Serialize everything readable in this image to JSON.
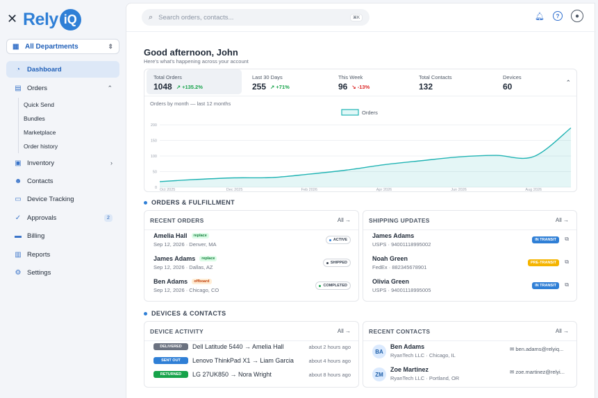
{
  "app": {
    "logo_text": "Rely",
    "logo_badge": "iQ"
  },
  "sidebar": {
    "department": "All Departments",
    "items": [
      {
        "label": "Dashboard",
        "icon": "gauge-icon"
      },
      {
        "label": "Orders",
        "icon": "clipboard-icon"
      },
      {
        "label": "Inventory",
        "icon": "box-icon"
      },
      {
        "label": "Contacts",
        "icon": "users-icon"
      },
      {
        "label": "Device Tracking",
        "icon": "device-icon"
      },
      {
        "label": "Approvals",
        "icon": "check-badge-icon",
        "badge": "2"
      },
      {
        "label": "Billing",
        "icon": "card-icon"
      },
      {
        "label": "Reports",
        "icon": "report-icon"
      },
      {
        "label": "Settings",
        "icon": "settings-icon"
      }
    ],
    "order_subitems": [
      "Quick Send",
      "Bundles",
      "Marketplace",
      "Order history"
    ]
  },
  "search": {
    "placeholder": "Search orders, contacts...",
    "shortcut": "⌘K"
  },
  "greeting": {
    "title": "Good afternoon, John",
    "subtitle": "Here's what's happening across your account"
  },
  "stats": [
    {
      "label": "Total Orders",
      "value": "1048",
      "delta": "+135.2%",
      "trend": "up"
    },
    {
      "label": "Last 30 Days",
      "value": "255",
      "delta": "+71%",
      "trend": "up"
    },
    {
      "label": "This Week",
      "value": "96",
      "delta": "-13%",
      "trend": "down"
    },
    {
      "label": "Total Contacts",
      "value": "132"
    },
    {
      "label": "Devices",
      "value": "60"
    }
  ],
  "chart_data": {
    "type": "area",
    "title": "Orders by month — last 12 months",
    "legend": "Orders",
    "x": [
      "Oct 2025",
      "Nov 2025",
      "Dec 2025",
      "Jan 2026",
      "Feb 2026",
      "Mar 2026",
      "Apr 2026",
      "May 2026",
      "Jun 2026",
      "Jul 2026",
      "Aug 2026",
      "Sep 2026"
    ],
    "x_tick_labels": [
      "Oct 2025",
      "Dec 2025",
      "Feb 2026",
      "Apr 2026",
      "Jun 2026",
      "Aug 2026"
    ],
    "values": [
      18,
      25,
      30,
      31,
      42,
      55,
      72,
      85,
      97,
      102,
      98,
      190
    ],
    "ylim": [
      0,
      200
    ],
    "yticks": [
      0,
      50,
      100,
      150,
      200
    ],
    "color": "#1fb3b3"
  },
  "sections": {
    "orders": "ORDERS & FULFILLMENT",
    "devices": "DEVICES & CONTACTS"
  },
  "recent_orders": {
    "title": "RECENT ORDERS",
    "all": "All",
    "rows": [
      {
        "name": "Amelia Hall",
        "tag": "replace",
        "meta": "Sep 12, 2026 · Denver, MA",
        "status": "ACTIVE",
        "dot": "#2f7fd6"
      },
      {
        "name": "James Adams",
        "tag": "replace",
        "meta": "Sep 12, 2026 · Dallas, AZ",
        "status": "SHIPPED",
        "dot": "#374151"
      },
      {
        "name": "Ben Adams",
        "tag": "offboard",
        "meta": "Sep 12, 2026 · Chicago, CO",
        "status": "COMPLETED",
        "dot": "#16a34a"
      }
    ]
  },
  "shipping": {
    "title": "SHIPPING UPDATES",
    "all": "All",
    "rows": [
      {
        "name": "James Adams",
        "meta": "USPS · 94001118995002",
        "status": "IN TRANSIT",
        "color": "#2f7fd6"
      },
      {
        "name": "Noah Green",
        "meta": "FedEx · 882345678901",
        "status": "PRE-TRANSIT",
        "color": "#f5b400"
      },
      {
        "name": "Olivia Green",
        "meta": "USPS · 94001118995005",
        "status": "IN TRANSIT",
        "color": "#2f7fd6"
      }
    ]
  },
  "device_activity": {
    "title": "DEVICE ACTIVITY",
    "all": "All",
    "rows": [
      {
        "badge": "DELIVERED",
        "color": "#6b7280",
        "text": "Dell Latitude 5440 → Amelia Hall",
        "time": "about 2 hours ago"
      },
      {
        "badge": "SENT OUT",
        "color": "#2f7fd6",
        "text": "Lenovo ThinkPad X1 → Liam Garcia",
        "time": "about 4 hours ago"
      },
      {
        "badge": "RETURNED",
        "color": "#16a34a",
        "text": "LG 27UK850 → Nora Wright",
        "time": "about 8 hours ago"
      }
    ]
  },
  "recent_contacts": {
    "title": "RECENT CONTACTS",
    "all": "All",
    "rows": [
      {
        "initials": "BA",
        "name": "Ben Adams",
        "meta": "RyanTech LLC · Chicago, IL",
        "email": "ben.adams@relyiq..."
      },
      {
        "initials": "ZM",
        "name": "Zoe Martinez",
        "meta": "RyanTech LLC · Portland, OR",
        "email": "zoe.martinez@relyi..."
      }
    ]
  }
}
